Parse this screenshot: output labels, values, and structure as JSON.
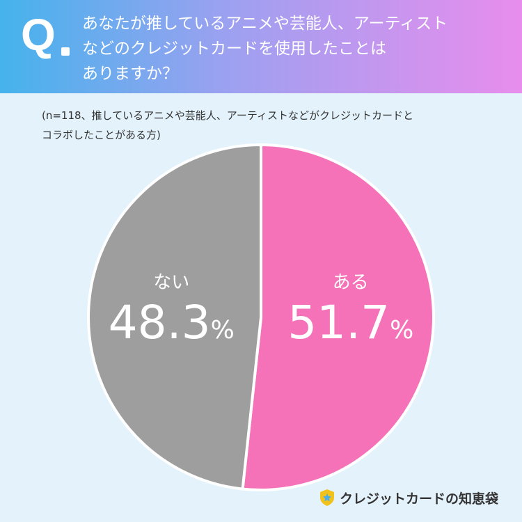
{
  "header": {
    "q_label": "Q",
    "question_lines": [
      "あなたが推しているアニメや芸能人、アーティスト",
      "などのクレジットカードを使用したことは",
      "ありますか？"
    ]
  },
  "note_lines": [
    "(n=118、推しているアニメや芸能人、アーティストなどがクレジットカードと",
    "コラボしたことがある方)"
  ],
  "chart_data": {
    "type": "pie",
    "title": "あなたが推しているアニメや芸能人、アーティストなどのクレジットカードを使用したことはありますか？",
    "n": 118,
    "slices": [
      {
        "label": "ある",
        "value": 51.7,
        "display": "51.7",
        "unit": "%",
        "color": "#f572b9"
      },
      {
        "label": "ない",
        "value": 48.3,
        "display": "48.3",
        "unit": "%",
        "color": "#9e9e9e"
      }
    ],
    "start": "12 o'clock",
    "direction": "clockwise"
  },
  "brand": {
    "name": "クレジットカードの知恵袋",
    "icon": "shield-star-icon",
    "icon_colors": [
      "#f2c21b",
      "#4aaee8"
    ]
  },
  "colors": {
    "background": "#e3f2fb",
    "header_gradient": [
      "#45b3ec",
      "#9fa0f0",
      "#e88ded"
    ]
  }
}
